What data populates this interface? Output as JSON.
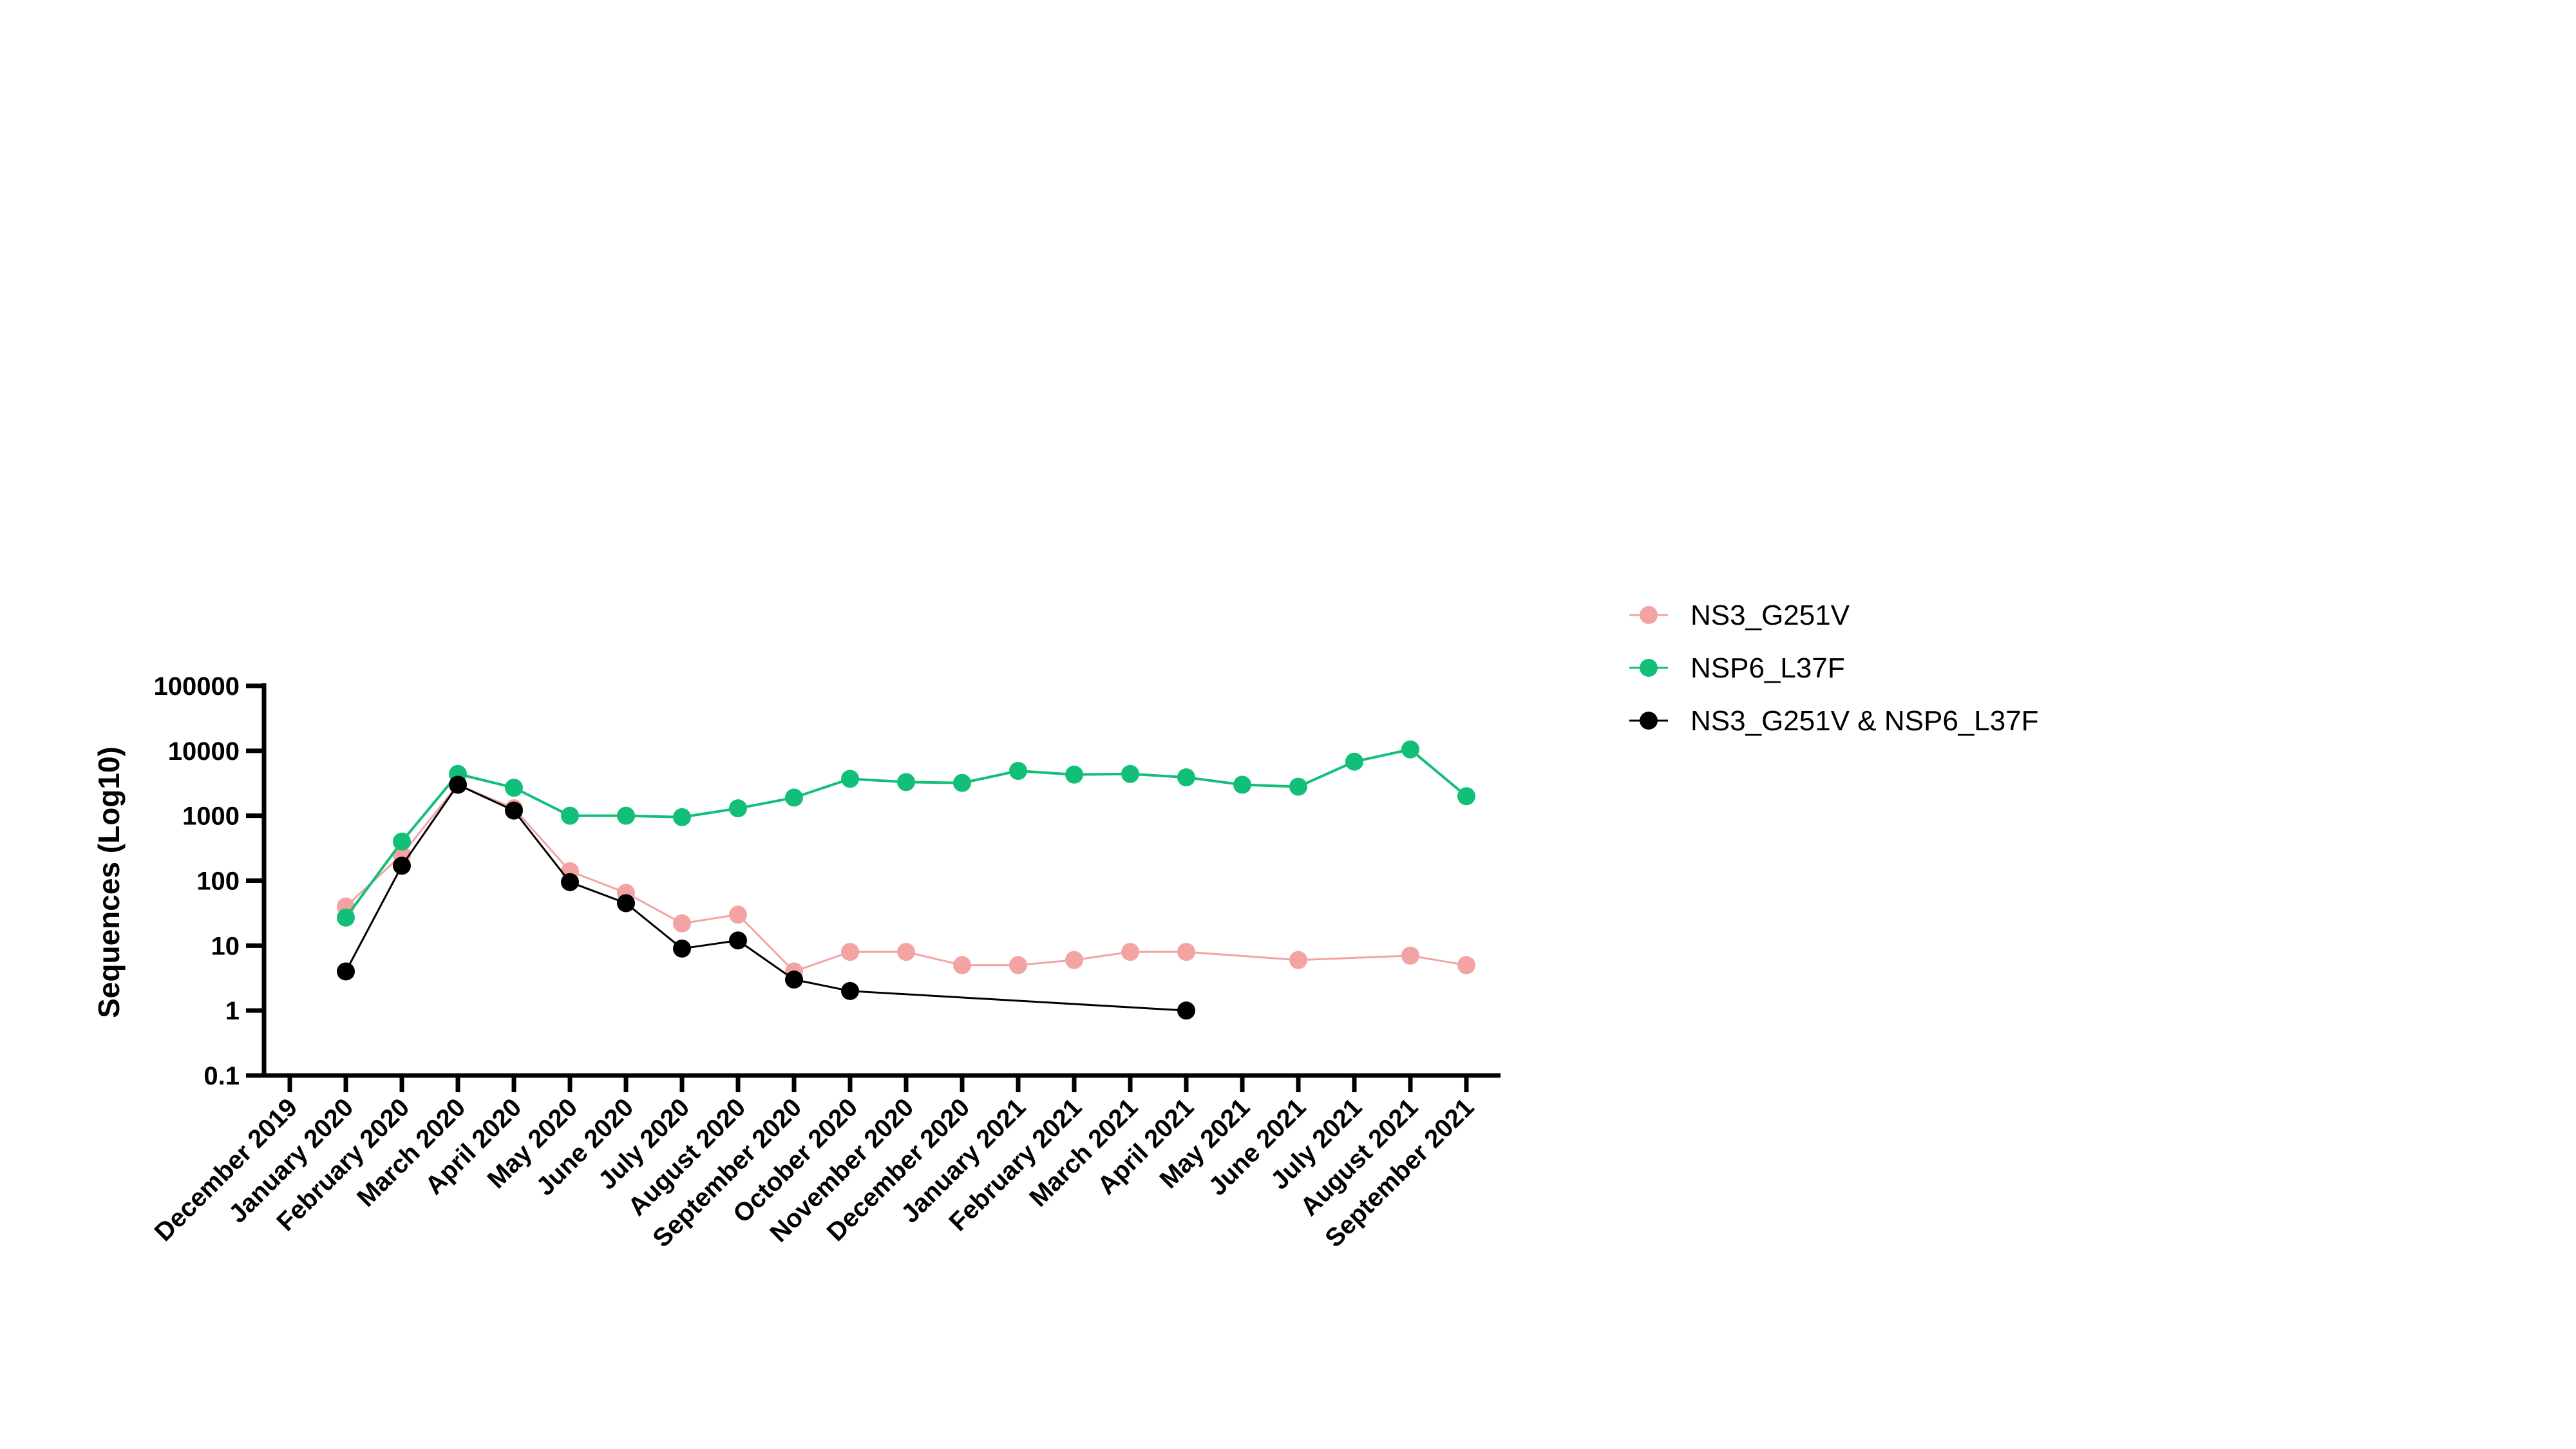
{
  "chart_data": {
    "type": "line",
    "y_scale": "log10",
    "ylabel": "Sequences (Log10)",
    "xlabel": "",
    "ylim": [
      0.1,
      100000
    ],
    "y_ticks": [
      "100000",
      "10000",
      "1000",
      "100",
      "10",
      "1",
      "0.1"
    ],
    "categories": [
      "December 2019",
      "January 2020",
      "February 2020",
      "March 2020",
      "April 2020",
      "May 2020",
      "June 2020",
      "July 2020",
      "August 2020",
      "September 2020",
      "October 2020",
      "November 2020",
      "December 2020",
      "January 2021",
      "February 2021",
      "March 2021",
      "April 2021",
      "May 2021",
      "June 2021",
      "July 2021",
      "August 2021",
      "September 2021"
    ],
    "legend_position": "right",
    "grid": false,
    "series": [
      {
        "name": "NS3_G251V",
        "color": "#f4a3a3",
        "values": [
          null,
          40,
          250,
          3000,
          1300,
          140,
          65,
          22,
          30,
          4,
          8,
          8,
          5,
          5,
          6,
          8,
          8,
          null,
          6,
          null,
          7,
          5
        ]
      },
      {
        "name": "NSP6_L37F",
        "color": "#12bf78",
        "values": [
          null,
          27,
          400,
          4400,
          2700,
          1000,
          1000,
          950,
          1300,
          1900,
          3700,
          3300,
          3200,
          4900,
          4300,
          4400,
          3900,
          3000,
          2800,
          6800,
          10500,
          2000
        ]
      },
      {
        "name": "NS3_G251V & NSP6_L37F",
        "color": "#000000",
        "values": [
          null,
          4,
          170,
          3000,
          1200,
          95,
          45,
          9,
          12,
          3,
          2,
          null,
          null,
          null,
          null,
          null,
          1,
          null,
          null,
          null,
          null,
          null
        ]
      }
    ]
  }
}
